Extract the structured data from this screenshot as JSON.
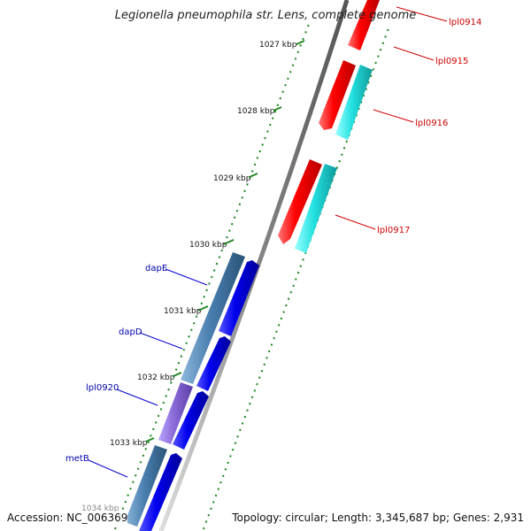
{
  "title": "Legionella pneumophila str. Lens, complete genome",
  "accession": "Accession: NC_006369",
  "topology": "Topology: circular; Length: 3,345,687 bp; Genes: 2,931",
  "colors": {
    "forward_cds": "#0000ee",
    "reverse_cds": "#ff0000",
    "cog_cyan": "#33dddd",
    "cog_steel": "#4a7fb0",
    "cog_purple": "#8a6ad8",
    "backbone": "#888888",
    "tick": "#228822",
    "left_label": "#0000aa",
    "right_label": "#cc0000"
  },
  "ticks": [
    "1027 kbp",
    "1028 kbp",
    "1029 kbp",
    "1030 kbp",
    "1031 kbp",
    "1032 kbp",
    "1033 kbp",
    "1034 kbp"
  ],
  "genes_left": [
    "dapE",
    "dapD",
    "lpl0920",
    "metB"
  ],
  "genes_right": [
    "lpl0914",
    "lpl0915",
    "lpl0916",
    "lpl0917"
  ]
}
